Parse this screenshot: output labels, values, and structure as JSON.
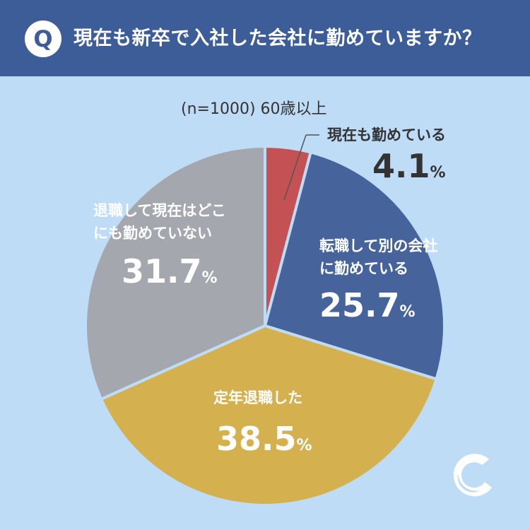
{
  "header": {
    "badge": "Q",
    "question": "現在も新卒で入社した会社に勤めていますか？"
  },
  "subtitle": "(n=1000) 60歳以上",
  "colors": {
    "header_bg": "#3d5d99",
    "background": "#bfdcf7",
    "still_employed": "#c45254",
    "changed_job": "#46639c",
    "retired": "#d4b04e",
    "not_working": "#a4a7ad"
  },
  "chart_data": {
    "type": "pie",
    "slices": [
      {
        "label": "現在も勤めている",
        "value": 4.1,
        "color": "#c45254"
      },
      {
        "label": "転職して別の会社に勤めている",
        "label_lines": [
          "転職して別の会社",
          "に勤めている"
        ],
        "value": 25.7,
        "color": "#46639c"
      },
      {
        "label": "定年退職した",
        "value": 38.5,
        "color": "#d4b04e"
      },
      {
        "label": "退職して現在はどこにも勤めていない",
        "label_lines": [
          "退職して現在はどこ",
          "にも勤めていない"
        ],
        "value": 31.7,
        "color": "#a4a7ad"
      }
    ],
    "start_angle_deg": 0,
    "direction": "clockwise",
    "percent_sign": "%",
    "value_labels": [
      "4.1",
      "25.7",
      "38.5",
      "31.7"
    ]
  },
  "logo": {
    "icon": "crescent-c-logo-icon"
  }
}
